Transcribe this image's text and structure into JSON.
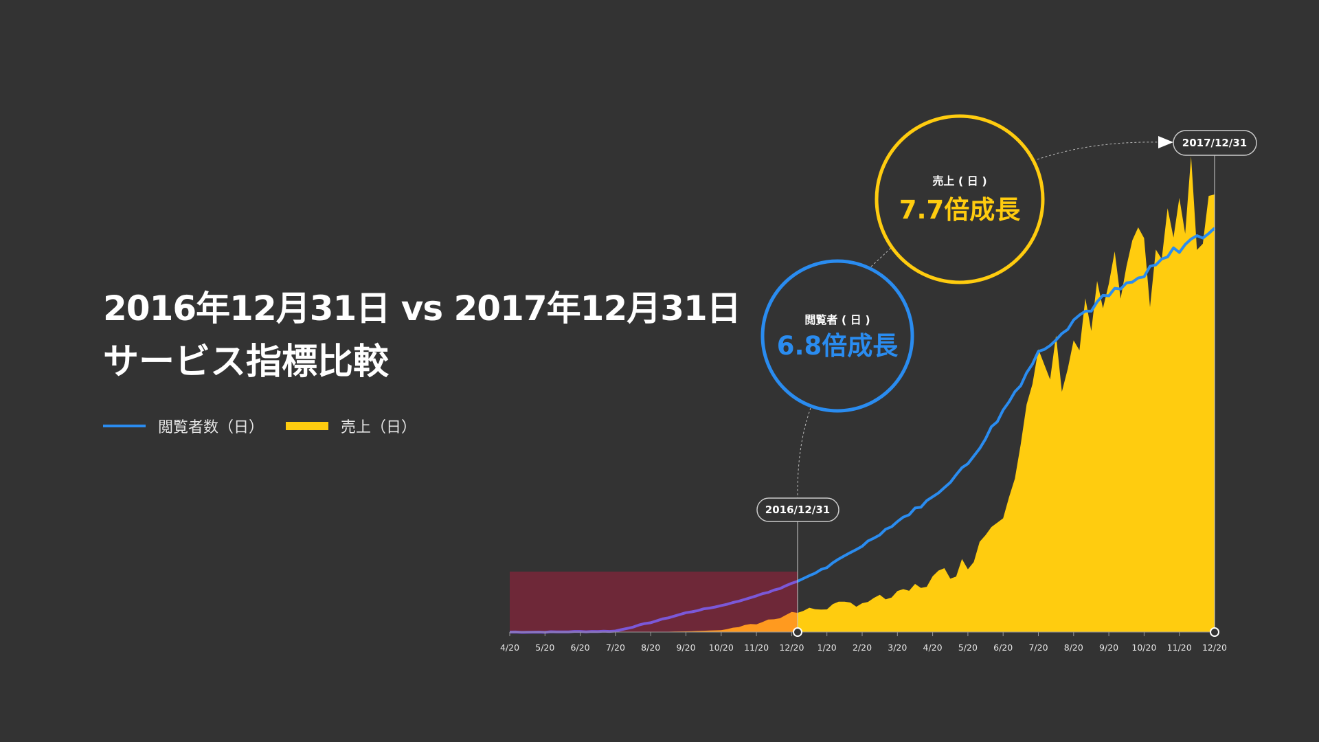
{
  "title": {
    "line1": "2016年12月31日 vs 2017年12月31日",
    "line2": "サービス指標比較"
  },
  "legend": {
    "viewers": "閲覧者数（日）",
    "sales": "売上（日）"
  },
  "colors": {
    "background": "#333333",
    "viewers": "#2a8cf0",
    "sales": "#ffcc0f",
    "sales_2016": "#ff9a1f",
    "highlight_2016": "#6e2838",
    "viewers_2016": "#7b58d8"
  },
  "callouts": {
    "start_date": "2016/12/31",
    "end_date": "2017/12/31",
    "viewers_label": "閲覧者 ( 日 )",
    "viewers_growth": "6.8倍成長",
    "sales_label": "売上 ( 日 )",
    "sales_growth": "7.7倍成長"
  },
  "chart_data": {
    "type": "area",
    "x_ticks": [
      "4/20",
      "5/20",
      "6/20",
      "7/20",
      "8/20",
      "9/20",
      "10/20",
      "11/20",
      "12/20",
      "1/20",
      "2/20",
      "3/20",
      "4/20",
      "5/20",
      "6/20",
      "7/20",
      "8/20",
      "9/20",
      "10/20",
      "11/20",
      "12/20"
    ],
    "series": [
      {
        "name": "売上（日）",
        "values": [
          0.0,
          0.0,
          0.0,
          0.0,
          0.0,
          0.3,
          0.8,
          3.5,
          8.0,
          10.5,
          12.5,
          15.0,
          22.0,
          29.0,
          55.0,
          105.0,
          118.0,
          138.0,
          150.0,
          170.0,
          182.0
        ]
      },
      {
        "name": "閲覧者数（日）",
        "values": [
          0.0,
          0.0,
          0.2,
          0.4,
          4.0,
          8.0,
          11.0,
          15.0,
          20.0,
          27.0,
          36.0,
          46.0,
          56.0,
          70.0,
          92.0,
          116.0,
          130.0,
          140.0,
          148.0,
          160.0,
          168.0
        ]
      }
    ],
    "highlight_range": [
      "4/20",
      "2016/12/31"
    ]
  }
}
